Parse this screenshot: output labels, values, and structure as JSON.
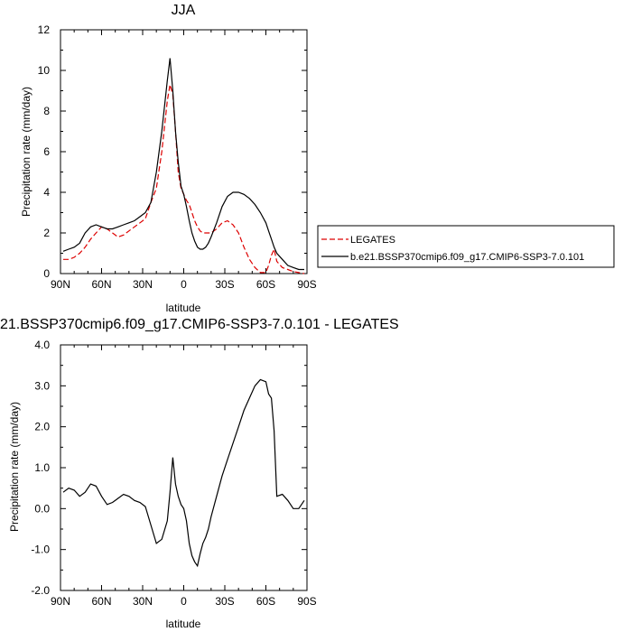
{
  "chart_data": [
    {
      "type": "line",
      "title": "JJA",
      "xlabel": "latitude",
      "ylabel": "Precipitation rate (mm/day)",
      "xlim": [
        -90,
        90
      ],
      "ylim": [
        0,
        12
      ],
      "xticks": [
        -90,
        -60,
        -30,
        0,
        30,
        60,
        90
      ],
      "xtick_labels": [
        "90N",
        "60N",
        "30N",
        "0",
        "30S",
        "60S",
        "90S"
      ],
      "yticks": [
        0,
        2,
        4,
        6,
        8,
        10,
        12
      ],
      "ytick_labels": [
        "0",
        "2",
        "4",
        "6",
        "8",
        "10",
        "12"
      ],
      "legend": {
        "position": "right"
      },
      "series": [
        {
          "name": "LEGATES",
          "color": "#dd0000",
          "dash": "dashed",
          "x": [
            -88,
            -84,
            -80,
            -76,
            -72,
            -68,
            -64,
            -60,
            -56,
            -52,
            -48,
            -44,
            -40,
            -36,
            -32,
            -28,
            -24,
            -20,
            -16,
            -12,
            -10,
            -8,
            -6,
            -4,
            -2,
            0,
            2,
            4,
            6,
            8,
            10,
            12,
            14,
            16,
            18,
            20,
            24,
            28,
            32,
            36,
            40,
            44,
            48,
            52,
            56,
            60,
            62,
            64,
            66,
            68,
            72,
            76,
            80,
            84,
            88
          ],
          "y": [
            0.7,
            0.7,
            0.8,
            1.0,
            1.3,
            1.7,
            2.0,
            2.3,
            2.2,
            2.0,
            1.8,
            1.9,
            2.1,
            2.3,
            2.5,
            2.7,
            3.5,
            4.2,
            6.0,
            8.5,
            9.3,
            8.8,
            7.0,
            5.0,
            4.2,
            3.9,
            3.6,
            3.4,
            3.0,
            2.6,
            2.3,
            2.1,
            2.0,
            2.0,
            2.0,
            2.0,
            2.2,
            2.5,
            2.6,
            2.4,
            2.0,
            1.3,
            0.7,
            0.3,
            0.05,
            0.05,
            0.4,
            0.9,
            1.2,
            0.6,
            0.3,
            0.2,
            0.1,
            0.05,
            0.0
          ]
        },
        {
          "name": "b.e21.BSSP370cmip6.f09_g17.CMIP6-SSP3-7.0.101",
          "color": "#000000",
          "dash": "solid",
          "x": [
            -88,
            -84,
            -80,
            -76,
            -72,
            -68,
            -64,
            -60,
            -56,
            -52,
            -48,
            -44,
            -40,
            -36,
            -32,
            -28,
            -24,
            -20,
            -16,
            -12,
            -10,
            -8,
            -6,
            -4,
            -2,
            0,
            2,
            4,
            6,
            8,
            10,
            12,
            14,
            16,
            18,
            20,
            24,
            28,
            32,
            36,
            40,
            44,
            48,
            52,
            56,
            60,
            62,
            64,
            66,
            68,
            72,
            76,
            80,
            84,
            88
          ],
          "y": [
            1.1,
            1.2,
            1.3,
            1.5,
            2.0,
            2.3,
            2.4,
            2.3,
            2.2,
            2.2,
            2.3,
            2.4,
            2.5,
            2.6,
            2.8,
            3.0,
            3.5,
            5.0,
            7.0,
            9.5,
            10.6,
            9.0,
            7.0,
            5.5,
            4.3,
            3.9,
            3.3,
            2.6,
            2.0,
            1.6,
            1.3,
            1.2,
            1.2,
            1.3,
            1.5,
            1.8,
            2.5,
            3.3,
            3.8,
            4.0,
            4.0,
            3.9,
            3.7,
            3.4,
            3.0,
            2.5,
            2.1,
            1.7,
            1.3,
            1.0,
            0.7,
            0.4,
            0.3,
            0.2,
            0.2
          ]
        }
      ]
    },
    {
      "type": "line",
      "title": "21.BSSP370cmip6.f09_g17.CMIP6-SSP3-7.0.101 - LEGATES",
      "xlabel": "latitude",
      "ylabel": "Precipitation rate (mm/day)",
      "xlim": [
        -90,
        90
      ],
      "ylim": [
        -2,
        4
      ],
      "xticks": [
        -90,
        -60,
        -30,
        0,
        30,
        60,
        90
      ],
      "xtick_labels": [
        "90N",
        "60N",
        "30N",
        "0",
        "30S",
        "60S",
        "90S"
      ],
      "yticks": [
        -2,
        -1,
        0,
        1,
        2,
        3,
        4
      ],
      "ytick_labels": [
        "-2.0",
        "-1.0",
        "0.0",
        "1.0",
        "2.0",
        "3.0",
        "4.0"
      ],
      "series": [
        {
          "color": "#000000",
          "dash": "solid",
          "x": [
            -88,
            -84,
            -80,
            -76,
            -72,
            -68,
            -64,
            -60,
            -56,
            -52,
            -48,
            -44,
            -40,
            -36,
            -32,
            -28,
            -24,
            -20,
            -16,
            -12,
            -10,
            -8,
            -6,
            -4,
            -2,
            0,
            2,
            4,
            6,
            8,
            10,
            12,
            14,
            16,
            18,
            20,
            24,
            28,
            32,
            36,
            40,
            44,
            48,
            52,
            56,
            60,
            62,
            64,
            66,
            68,
            72,
            76,
            80,
            84,
            88
          ],
          "y": [
            0.4,
            0.5,
            0.45,
            0.3,
            0.4,
            0.6,
            0.55,
            0.3,
            0.1,
            0.15,
            0.25,
            0.35,
            0.3,
            0.2,
            0.15,
            0.05,
            -0.4,
            -0.85,
            -0.75,
            -0.3,
            0.4,
            1.25,
            0.6,
            0.3,
            0.1,
            0.0,
            -0.3,
            -0.85,
            -1.15,
            -1.3,
            -1.4,
            -1.1,
            -0.85,
            -0.7,
            -0.5,
            -0.2,
            0.3,
            0.8,
            1.2,
            1.6,
            2.0,
            2.4,
            2.7,
            3.0,
            3.15,
            3.1,
            2.8,
            2.7,
            1.9,
            0.3,
            0.35,
            0.2,
            0.0,
            0.0,
            0.2
          ]
        }
      ]
    }
  ]
}
